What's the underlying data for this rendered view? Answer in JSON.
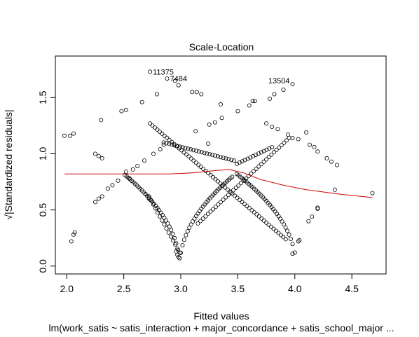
{
  "chart_data": {
    "type": "scatter",
    "title": "Scale-Location",
    "xlabel": "Fitted values",
    "ylabel": "√|Standardized residuals|",
    "caption": "lm(work_satis ~ satis_interaction + major_concordance + satis_school_major  ...",
    "xlim": [
      1.9,
      4.8
    ],
    "ylim": [
      -0.07,
      1.87
    ],
    "x_ticks": [
      2.0,
      2.5,
      3.0,
      3.5,
      4.0,
      4.5
    ],
    "x_tick_labels": [
      "2.0",
      "2.5",
      "3.0",
      "3.5",
      "4.0",
      "4.5"
    ],
    "y_ticks": [
      0.0,
      0.5,
      1.0,
      1.5
    ],
    "y_tick_labels": [
      "0.0",
      "0.5",
      "1.0",
      "1.5"
    ],
    "grid": false,
    "point_color": "#000000",
    "line_color": "#cc0000",
    "points": [
      [
        1.98,
        1.16
      ],
      [
        2.03,
        1.16
      ],
      [
        2.06,
        1.18
      ],
      [
        2.04,
        0.22
      ],
      [
        2.06,
        0.28
      ],
      [
        2.07,
        0.3
      ],
      [
        2.25,
        1.0
      ],
      [
        2.28,
        0.98
      ],
      [
        2.31,
        0.96
      ],
      [
        2.3,
        1.3
      ],
      [
        2.25,
        0.57
      ],
      [
        2.28,
        0.6
      ],
      [
        2.31,
        0.62
      ],
      [
        2.36,
        0.69
      ],
      [
        2.4,
        0.72
      ],
      [
        2.45,
        0.76
      ],
      [
        2.48,
        1.38
      ],
      [
        2.52,
        1.39
      ],
      [
        2.52,
        0.84
      ],
      [
        2.55,
        0.78
      ],
      [
        2.58,
        0.86
      ],
      [
        2.62,
        0.89
      ],
      [
        2.66,
        1.46
      ],
      [
        2.68,
        0.94
      ],
      [
        2.69,
        0.64
      ],
      [
        2.72,
        0.6
      ],
      [
        2.73,
        1.73
      ],
      [
        2.76,
        1.0
      ],
      [
        2.79,
        1.53
      ],
      [
        2.82,
        1.04
      ],
      [
        2.85,
        1.08
      ],
      [
        2.88,
        1.67
      ],
      [
        2.95,
        1.65
      ],
      [
        2.98,
        1.61
      ],
      [
        3.1,
        1.55
      ],
      [
        3.14,
        1.55
      ],
      [
        3.18,
        1.53
      ],
      [
        3.35,
        1.44
      ],
      [
        3.5,
        1.38
      ],
      [
        3.6,
        1.43
      ],
      [
        3.63,
        1.47
      ],
      [
        3.65,
        1.47
      ],
      [
        3.75,
        1.27
      ],
      [
        3.78,
        1.49
      ],
      [
        3.82,
        1.53
      ],
      [
        3.9,
        1.57
      ],
      [
        3.98,
        1.62
      ],
      [
        3.8,
        1.24
      ],
      [
        3.85,
        1.22
      ],
      [
        3.94,
        1.17
      ],
      [
        3.98,
        1.14
      ],
      [
        4.03,
        1.13
      ],
      [
        4.1,
        1.19
      ],
      [
        4.13,
        1.08
      ],
      [
        4.17,
        1.06
      ],
      [
        4.2,
        1.02
      ],
      [
        4.28,
        0.96
      ],
      [
        4.32,
        0.93
      ],
      [
        4.37,
        0.9
      ],
      [
        4.35,
        0.68
      ],
      [
        4.68,
        0.65
      ],
      [
        4.12,
        0.4
      ],
      [
        4.15,
        0.44
      ],
      [
        4.2,
        0.51
      ],
      [
        4.2,
        0.52
      ],
      [
        3.98,
        0.11
      ],
      [
        4.0,
        0.12
      ],
      [
        4.03,
        0.22
      ],
      [
        4.04,
        0.23
      ],
      [
        2.98,
        0.08
      ],
      [
        2.97,
        0.1
      ],
      [
        2.96,
        0.13
      ],
      [
        3.25,
        1.26
      ],
      [
        3.3,
        1.28
      ],
      [
        3.36,
        1.32
      ],
      [
        3.13,
        1.2
      ],
      [
        3.24,
        1.09
      ]
    ],
    "labeled_points": [
      {
        "label": "11375",
        "x": 2.73,
        "y": 1.73
      },
      {
        "label": "7484",
        "x": 2.88,
        "y": 1.67
      },
      {
        "label": "13504",
        "x": 3.98,
        "y": 1.62
      }
    ],
    "curves": [
      {
        "x_start": 2.51,
        "x_end": 2.99,
        "center": 2.99,
        "height": 0.82
      },
      {
        "x_start": 2.99,
        "x_end": 3.45,
        "center": 2.99,
        "height": 0.82
      },
      {
        "x_start": 3.49,
        "x_end": 4.01,
        "center": 4.01,
        "height": 0.9
      },
      {
        "x_start": 3.98,
        "x_end": 4.01,
        "center": 4.01,
        "height": 0.9
      },
      {
        "x_start": 2.73,
        "x_end": 3.92,
        "center": 3.45,
        "height": 1.37,
        "descending_to": 0.24
      },
      {
        "x_start": 2.85,
        "x_end": 3.8,
        "center": 3.48,
        "height": 1.05,
        "descending_to": 0.55
      }
    ],
    "smooth_line": {
      "x": [
        1.98,
        2.3,
        2.6,
        2.9,
        3.1,
        3.3,
        3.42,
        3.55,
        3.7,
        3.9,
        4.1,
        4.4,
        4.68
      ],
      "y": [
        0.82,
        0.82,
        0.82,
        0.82,
        0.83,
        0.85,
        0.86,
        0.83,
        0.77,
        0.72,
        0.68,
        0.64,
        0.61
      ]
    }
  }
}
